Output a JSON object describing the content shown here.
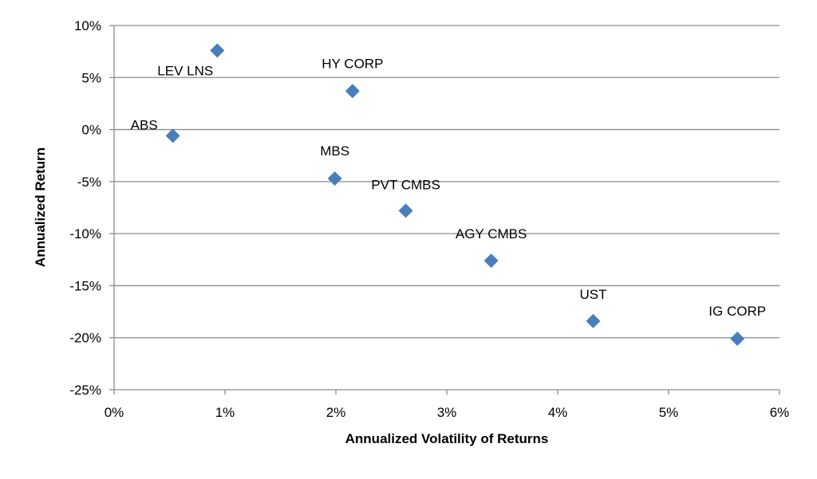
{
  "chart_data": {
    "type": "scatter",
    "title": "",
    "xlabel": "Annualized Volatility of Returns",
    "ylabel": "Annualized Return",
    "xlim": [
      0,
      6
    ],
    "ylim": [
      -25,
      10
    ],
    "x_ticks": [
      0,
      1,
      2,
      3,
      4,
      5,
      6
    ],
    "y_ticks": [
      10,
      5,
      0,
      -5,
      -10,
      -15,
      -20,
      -25
    ],
    "x_tick_labels": [
      "0%",
      "1%",
      "2%",
      "3%",
      "4%",
      "5%",
      "6%"
    ],
    "y_tick_labels": [
      "10%",
      "5%",
      "0%",
      "-5%",
      "-10%",
      "-15%",
      "-20%",
      "-25%"
    ],
    "grid": "horizontal",
    "marker_color": "#4a7ebb",
    "points": [
      {
        "label": "LEV LNS",
        "x": 0.93,
        "y": 7.6
      },
      {
        "label": "HY CORP",
        "x": 2.15,
        "y": 3.7
      },
      {
        "label": "ABS",
        "x": 0.53,
        "y": -0.6
      },
      {
        "label": "MBS",
        "x": 1.99,
        "y": -4.7
      },
      {
        "label": "PVT CMBS",
        "x": 2.63,
        "y": -7.8
      },
      {
        "label": "AGY CMBS",
        "x": 3.4,
        "y": -12.6
      },
      {
        "label": "UST",
        "x": 4.32,
        "y": -18.4
      },
      {
        "label": "IG CORP",
        "x": 5.62,
        "y": -20.1
      }
    ]
  }
}
